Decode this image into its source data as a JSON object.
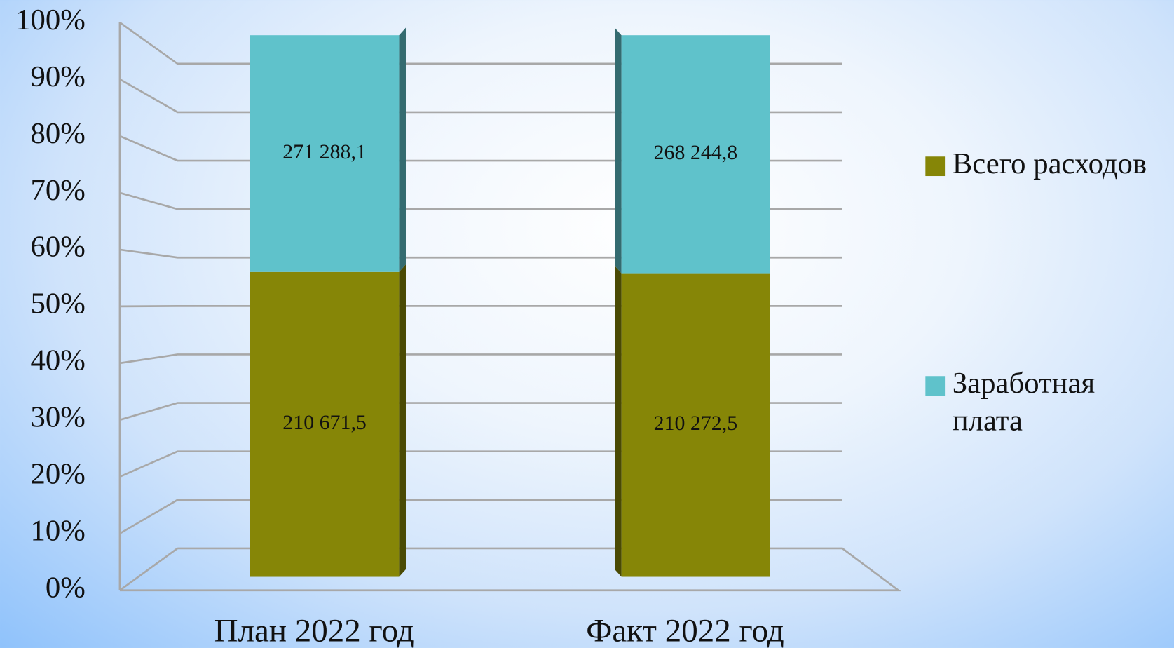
{
  "chart_data": {
    "type": "stacked-bar-percent",
    "categories": [
      "План 2022 год",
      "Факт 2022 год"
    ],
    "series": [
      {
        "name": "Всего расходов",
        "color": "#868607",
        "values": [
          271288.1,
          268244.8
        ]
      },
      {
        "name": "Заработная плата",
        "color": "#5fc2cb",
        "values": [
          210671.5,
          210272.5
        ]
      }
    ],
    "data_labels": [
      "271 288,1",
      "268 244,8",
      "210 671,5",
      "210 272,5"
    ],
    "ylim": [
      0,
      100
    ],
    "yticks": [
      {
        "value": 0,
        "label": "0%"
      },
      {
        "value": 10,
        "label": "10%"
      },
      {
        "value": 20,
        "label": "20%"
      },
      {
        "value": 30,
        "label": "30%"
      },
      {
        "value": 40,
        "label": "40%"
      },
      {
        "value": 50,
        "label": "50%"
      },
      {
        "value": 60,
        "label": "60%"
      },
      {
        "value": 70,
        "label": "70%"
      },
      {
        "value": 80,
        "label": "80%"
      },
      {
        "value": 90,
        "label": "90%"
      },
      {
        "value": 100,
        "label": "100%"
      }
    ],
    "grid": true,
    "legend": "right"
  }
}
